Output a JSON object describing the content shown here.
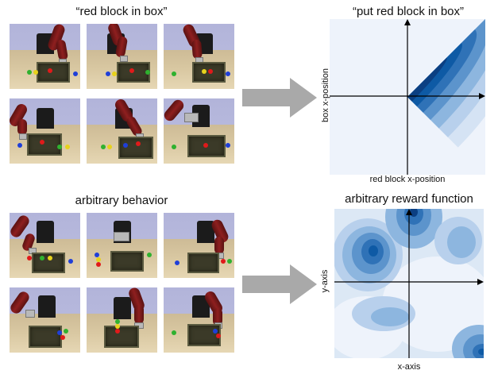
{
  "top": {
    "scenes_title": "“red block in box”",
    "plot_title": "“put red block in box”",
    "plot_xlabel": "red block x-position",
    "plot_ylabel": "box x-position"
  },
  "bottom": {
    "scenes_title": "arbitrary behavior",
    "plot_title": "arbitrary reward function",
    "plot_xlabel": "x-axis",
    "plot_ylabel": "y-axis"
  },
  "colors": {
    "arrow": "#a9a9a9",
    "contour_light": "#eef3fb",
    "contour_dark": "#0b3f82",
    "robot_arm": "#8e1f1f",
    "block_red": "#e01a1a",
    "block_green": "#2fb12f",
    "block_blue": "#1f3fd8",
    "block_yellow": "#e7d21c"
  },
  "icons": [
    "right-arrow-icon",
    "right-arrow-icon"
  ]
}
